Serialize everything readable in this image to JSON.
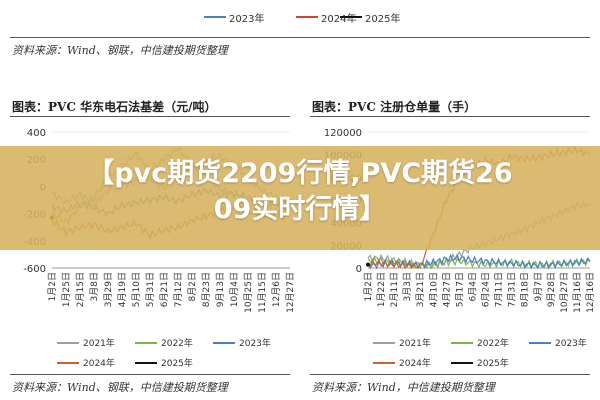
{
  "top_legend": [
    {
      "label": "2023年",
      "color": "#4a7fc1"
    },
    {
      "label": "2024年",
      "color": "#d6402d"
    },
    {
      "label": "2025年",
      "color": "#111111"
    }
  ],
  "source_top": "资料来源：Wind、钢联，中信建投期货整理",
  "source_bottom_left": "资料来源：Wind、钢联，中信建投期货整理",
  "source_bottom_right": "资料来源：Wind，中信建投期货整理",
  "banner": {
    "line1": "【pvc期货2209行情,PVC期货26",
    "line2": "09实时行情】"
  },
  "colors": {
    "y2021": "#9e9e9e",
    "y2022": "#7ab648",
    "y2023": "#4a7fc1",
    "y2024": "#c9622e",
    "y2025": "#111111"
  },
  "chart_data": [
    {
      "type": "line",
      "title": "图表：PVC 华东电石法基差（元/吨）",
      "xlabel": "",
      "ylabel": "",
      "ylim": [
        -600,
        400
      ],
      "yticks": [
        400,
        200,
        0,
        -200,
        -400,
        -600
      ],
      "x_ticks": [
        "1月2日",
        "1月25日",
        "2月15日",
        "3月8日",
        "3月29日",
        "4月19日",
        "5月10日",
        "5月31日",
        "6月21日",
        "7月12日",
        "8月2日",
        "8月23日",
        "9月13日",
        "10月4日",
        "10月25日",
        "11月15日",
        "12月6日",
        "12月27日"
      ],
      "legend": [
        {
          "label": "2021年",
          "color": "#9e9e9e"
        },
        {
          "label": "2022年",
          "color": "#7ab648"
        },
        {
          "label": "2023年",
          "color": "#4a7fc1"
        },
        {
          "label": "2024年",
          "color": "#c9622e"
        },
        {
          "label": "2025年",
          "color": "#111111"
        }
      ],
      "series": [
        {
          "name": "2021年",
          "color": "#9e9e9e",
          "x": [
            0,
            1,
            2,
            3,
            4,
            5,
            6,
            7,
            8,
            9,
            10,
            11,
            12,
            13,
            14,
            15,
            16,
            17
          ],
          "values": [
            -50,
            -120,
            -60,
            -130,
            -30,
            0,
            40,
            60,
            -10,
            70,
            120,
            180,
            220,
            160,
            60,
            -30,
            -80,
            -120
          ]
        },
        {
          "name": "2022年",
          "color": "#7ab648",
          "x": [
            0,
            1,
            2,
            3,
            4,
            5,
            6,
            7,
            8,
            9,
            10,
            11,
            12,
            13,
            14,
            15,
            16,
            17
          ],
          "values": [
            -200,
            -260,
            -150,
            -80,
            60,
            150,
            240,
            120,
            200,
            280,
            160,
            80,
            -20,
            -60,
            -100,
            -140,
            -180,
            -150
          ]
        },
        {
          "name": "2023年",
          "color": "#4a7fc1",
          "x": [
            0,
            1,
            2,
            3,
            4,
            5,
            6,
            7,
            8,
            9,
            10,
            11,
            12,
            13,
            14,
            15,
            16,
            17
          ],
          "values": [
            -150,
            -180,
            -120,
            -160,
            -200,
            -140,
            -120,
            -100,
            -80,
            -110,
            -60,
            -30,
            -70,
            -50,
            -80,
            -100,
            -120,
            -140
          ]
        },
        {
          "name": "2024年",
          "color": "#c9622e",
          "x": [
            0,
            1,
            2,
            3,
            4,
            5,
            6,
            7,
            8,
            9,
            10,
            11,
            12,
            13,
            14,
            15,
            16,
            17
          ],
          "values": [
            -250,
            -340,
            -300,
            -280,
            -330,
            -300,
            -270,
            -360,
            -320,
            -300,
            -250,
            -220,
            -180,
            -150,
            -180,
            -200,
            -230,
            -210
          ]
        },
        {
          "name": "2025年",
          "color": "#111111",
          "x": [
            0
          ],
          "values": [
            -230
          ]
        }
      ]
    },
    {
      "type": "line",
      "title": "图表：PVC 注册仓单量（手）",
      "xlabel": "",
      "ylabel": "",
      "ylim": [
        0,
        120000
      ],
      "yticks": [
        120000,
        100000,
        80000,
        60000,
        40000,
        20000,
        0
      ],
      "x_ticks": [
        "1月2日",
        "1月22日",
        "2月11日",
        "3月3日",
        "3月21日",
        "4月10日",
        "4月27日",
        "5月17日",
        "6月4日",
        "6月24日",
        "7月11日",
        "7月31日",
        "8月18日",
        "9月7日",
        "9月28日",
        "10月27日",
        "11月16日",
        "12月16日"
      ],
      "legend": [
        {
          "label": "2021年",
          "color": "#9e9e9e"
        },
        {
          "label": "2022年",
          "color": "#7ab648"
        },
        {
          "label": "2023年",
          "color": "#4a7fc1"
        },
        {
          "label": "2024年",
          "color": "#c9622e"
        },
        {
          "label": "2025年",
          "color": "#111111"
        }
      ],
      "series": [
        {
          "name": "2021年",
          "color": "#9e9e9e",
          "x": [
            0,
            1,
            2,
            3,
            4,
            5,
            6,
            7,
            8,
            9,
            10,
            11,
            12,
            13,
            14,
            15,
            16,
            17
          ],
          "values": [
            9000,
            8500,
            7000,
            5000,
            3000,
            2000,
            6000,
            12000,
            18000,
            22000,
            26000,
            30000,
            34000,
            40000,
            45000,
            50000,
            55000,
            56000
          ]
        },
        {
          "name": "2022年",
          "color": "#7ab648",
          "x": [
            0,
            1,
            2,
            3,
            4,
            5,
            6,
            7,
            8,
            9,
            10,
            11,
            12,
            13,
            14,
            15,
            16,
            17
          ],
          "values": [
            6000,
            6500,
            5000,
            4000,
            2000,
            3000,
            5000,
            6000,
            4000,
            3000,
            4000,
            5000,
            3500,
            3000,
            3500,
            4000,
            5000,
            5500
          ]
        },
        {
          "name": "2023年",
          "color": "#4a7fc1",
          "x": [
            0,
            1,
            2,
            3,
            4,
            5,
            6,
            7,
            8,
            9,
            10,
            11,
            12,
            13,
            14,
            15,
            16,
            17
          ],
          "values": [
            2000,
            3000,
            4000,
            3500,
            2500,
            5000,
            8000,
            9000,
            7000,
            6000,
            5000,
            4000,
            3000,
            2500,
            3000,
            4000,
            5000,
            6000
          ]
        },
        {
          "name": "2024年",
          "color": "#c9622e",
          "x": [
            0,
            1,
            2,
            3,
            4,
            5,
            6,
            7,
            8,
            9,
            10,
            11,
            12,
            13,
            14,
            15,
            16,
            17
          ],
          "values": [
            4000,
            4500,
            3000,
            2000,
            1000,
            30000,
            60000,
            80000,
            90000,
            95000,
            92000,
            98000,
            96000,
            97000,
            100000,
            102000,
            104000,
            100000
          ]
        },
        {
          "name": "2025年",
          "color": "#111111",
          "x": [
            0
          ],
          "values": [
            3000
          ]
        }
      ]
    }
  ]
}
